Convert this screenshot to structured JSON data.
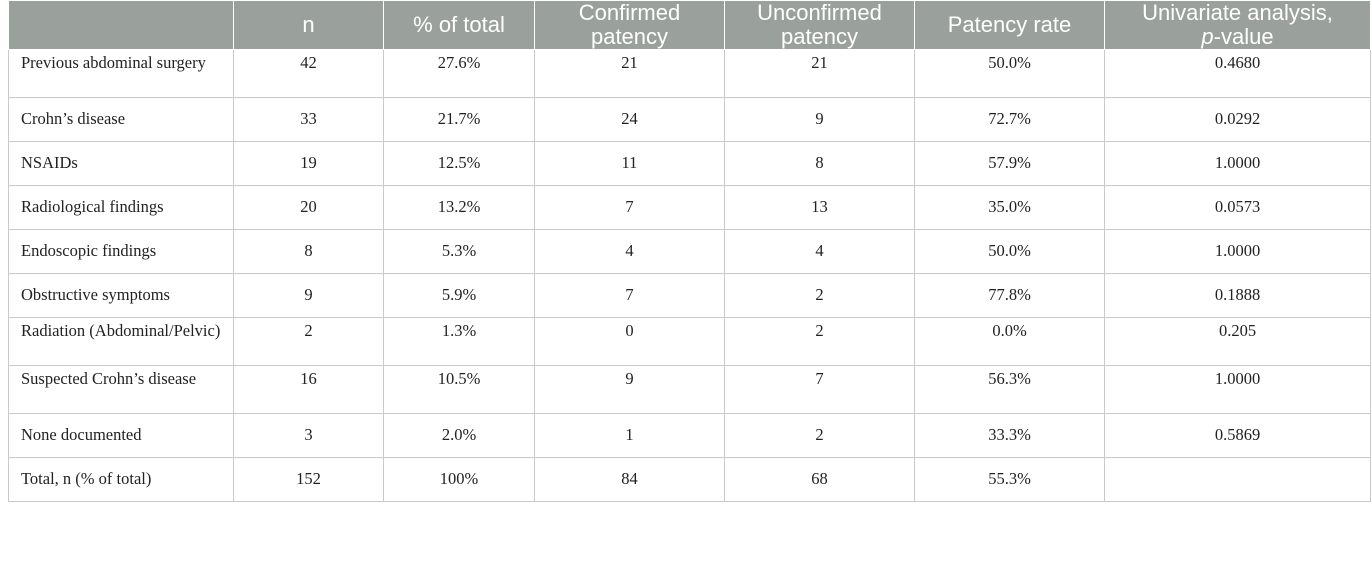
{
  "table": {
    "headers": [
      {
        "text": "",
        "italic": ""
      },
      {
        "text": "n",
        "italic": ""
      },
      {
        "text": "% of total",
        "italic": ""
      },
      {
        "text": "Confirmed patency",
        "italic": ""
      },
      {
        "text": "Unconfirmed patency",
        "italic": ""
      },
      {
        "text": "Patency rate",
        "italic": ""
      },
      {
        "text_before": "Univariate analysis, ",
        "italic": "p",
        "text_after": "-value"
      }
    ],
    "header_labels": {
      "n": "n",
      "pct_total": "% of total",
      "confirmed_line1": "Confirmed",
      "confirmed_line2": "patency",
      "unconfirmed_line1": "Unconfirmed",
      "unconfirmed_line2": "patency",
      "patency_rate": "Patency rate",
      "univariate_line1": "Univariate analysis,",
      "univariate_p": "p",
      "univariate_rest": "-value"
    },
    "rows": [
      {
        "label": "Previous abdominal surgery",
        "n": "42",
        "pct": "27.6%",
        "confirmed": "21",
        "unconfirmed": "21",
        "rate": "50.0%",
        "p": "0.4680"
      },
      {
        "label": "Crohn’s disease",
        "n": "33",
        "pct": "21.7%",
        "confirmed": "24",
        "unconfirmed": "9",
        "rate": "72.7%",
        "p": "0.0292"
      },
      {
        "label": "NSAIDs",
        "n": "19",
        "pct": "12.5%",
        "confirmed": "11",
        "unconfirmed": "8",
        "rate": "57.9%",
        "p": "1.0000"
      },
      {
        "label": "Radiological findings",
        "n": "20",
        "pct": "13.2%",
        "confirmed": "7",
        "unconfirmed": "13",
        "rate": "35.0%",
        "p": "0.0573"
      },
      {
        "label": "Endoscopic findings",
        "n": "8",
        "pct": "5.3%",
        "confirmed": "4",
        "unconfirmed": "4",
        "rate": "50.0%",
        "p": "1.0000"
      },
      {
        "label": "Obstructive symptoms",
        "n": "9",
        "pct": "5.9%",
        "confirmed": "7",
        "unconfirmed": "2",
        "rate": "77.8%",
        "p": "0.1888"
      },
      {
        "label": "Radiation (Abdominal/Pelvic)",
        "n": "2",
        "pct": "1.3%",
        "confirmed": "0",
        "unconfirmed": "2",
        "rate": "0.0%",
        "p": "0.205"
      },
      {
        "label": "Suspected Crohn’s disease",
        "n": "16",
        "pct": "10.5%",
        "confirmed": "9",
        "unconfirmed": "7",
        "rate": "56.3%",
        "p": "1.0000"
      },
      {
        "label": "None documented",
        "n": "3",
        "pct": "2.0%",
        "confirmed": "1",
        "unconfirmed": "2",
        "rate": "33.3%",
        "p": "0.5869"
      },
      {
        "label": "Total, n (% of total)",
        "n": "152",
        "pct": "100%",
        "confirmed": "84",
        "unconfirmed": "68",
        "rate": "55.3%",
        "p": ""
      }
    ]
  },
  "colors": {
    "header_bg": "#9aa19c",
    "header_text": "#ffffff",
    "grid_line": "#c9c9c9",
    "body_text": "#222222"
  }
}
